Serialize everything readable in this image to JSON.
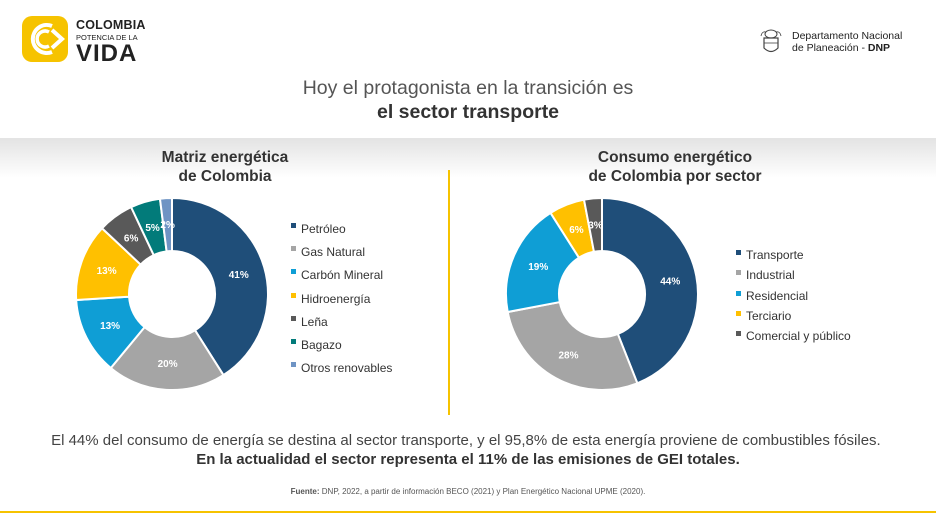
{
  "header": {
    "logo_line1": "COLOMBIA",
    "logo_line2": "POTENCIA DE LA",
    "logo_line3": "VIDA",
    "dnp_line1": "Departamento Nacional",
    "dnp_line2_prefix": "de Planeación - ",
    "dnp_line2_bold": "DNP"
  },
  "headline": {
    "line1": "Hoy el protagonista en la transición es",
    "line2": "el sector transporte"
  },
  "colors": {
    "dark_blue": "#1f4e79",
    "gray": "#a5a5a5",
    "light_blue": "#0f9ed5",
    "yellow": "#ffc000",
    "dark_gray": "#595959",
    "teal": "#027b7a",
    "slate_blue": "#6f94c4",
    "accent": "#f6c300"
  },
  "chart_data": [
    {
      "type": "pie",
      "title_line1": "Matriz energética",
      "title_line2": "de Colombia",
      "labels": [
        "Petróleo",
        "Gas Natural",
        "Carbón Mineral",
        "Hidroenergía",
        "Leña",
        "Bagazo",
        "Otros renovables"
      ],
      "values": [
        41,
        20,
        13,
        13,
        6,
        5,
        2
      ],
      "data_labels": [
        "41%",
        "20%",
        "13%",
        "13%",
        "6%",
        "5%",
        "2%"
      ],
      "colors": [
        "#1f4e79",
        "#a5a5a5",
        "#0f9ed5",
        "#ffc000",
        "#595959",
        "#027b7a",
        "#6f94c4"
      ],
      "legend_position": "right"
    },
    {
      "type": "pie",
      "title_line1": "Consumo energético",
      "title_line2": "de Colombia por sector",
      "labels": [
        "Transporte",
        "Industrial",
        "Residencial",
        "Terciario",
        "Comercial y público"
      ],
      "values": [
        44,
        28,
        19,
        6,
        3
      ],
      "data_labels": [
        "44%",
        "28%",
        "19%",
        "6%",
        "3%"
      ],
      "colors": [
        "#1f4e79",
        "#a5a5a5",
        "#0f9ed5",
        "#ffc000",
        "#595959"
      ],
      "legend_position": "right"
    }
  ],
  "bottom_text": {
    "normal": "El 44% del consumo de energía se destina al sector transporte, y el 95,8% de esta energía proviene de combustibles fósiles.",
    "bold": "En la actualidad el sector representa el 11% de las emisiones de GEI totales."
  },
  "source": {
    "label": "Fuente:",
    "text": "DNP, 2022, a partir de información BECO (2021) y Plan Energético Nacional UPME (2020)."
  }
}
